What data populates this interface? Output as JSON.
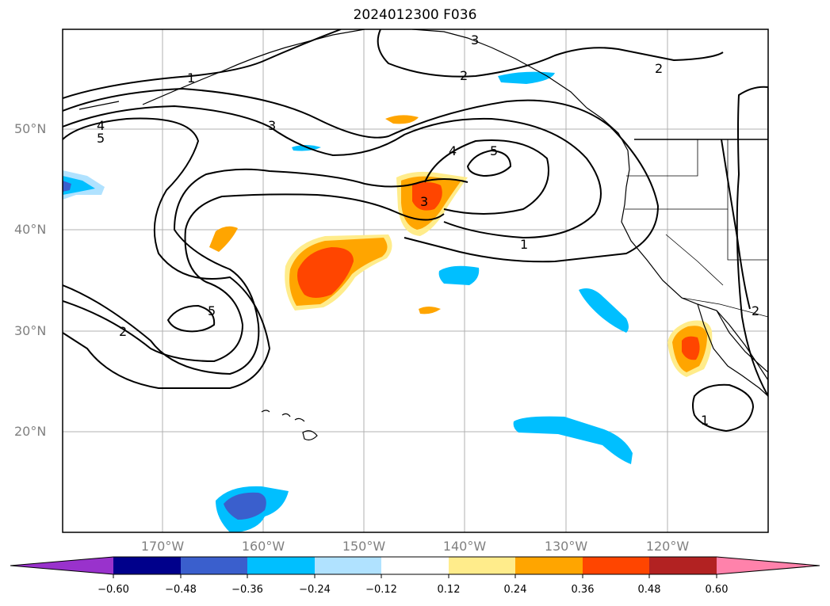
{
  "title": "2024012300 F036",
  "lat_labels": [
    "50°N",
    "40°N",
    "30°N",
    "20°N"
  ],
  "lon_labels": [
    "170°W",
    "160°W",
    "150°W",
    "140°W",
    "130°W",
    "120°W"
  ],
  "contour_labels": [
    "1",
    "1",
    "1",
    "2",
    "2",
    "2",
    "2",
    "3",
    "3",
    "3",
    "4",
    "4",
    "5",
    "5",
    "5"
  ],
  "colorbar": {
    "ticks": [
      "−0.60",
      "−0.48",
      "−0.36",
      "−0.24",
      "−0.12",
      "0.12",
      "0.24",
      "0.36",
      "0.48",
      "0.60"
    ],
    "colors": [
      "#9932cc",
      "#00008b",
      "#3a5fcd",
      "#00bfff",
      "#b0e2ff",
      "#ffffff",
      "#ffec8b",
      "#ffa500",
      "#ff4500",
      "#b22222",
      "#ff82ab"
    ]
  },
  "colors": {
    "light_blue": "#b0e2ff",
    "cyan": "#00bfff",
    "blue": "#3a5fcd",
    "yellow": "#ffec8b",
    "orange": "#ffa500",
    "red_orange": "#ff4500"
  }
}
